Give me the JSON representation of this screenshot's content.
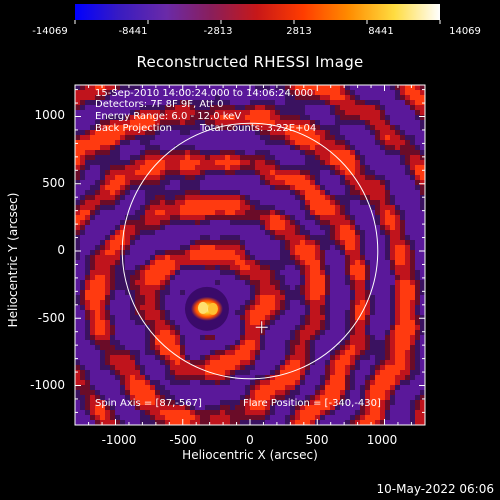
{
  "chart_data": {
    "type": "heatmap",
    "title": "Reconstructed RHESSI Image",
    "xlabel": "Heliocentric X (arcsec)",
    "ylabel": "Heliocentric Y (arcsec)",
    "xlim": [
      -1300,
      1300
    ],
    "ylim": [
      -1300,
      1300
    ],
    "xticks": [
      "-1000",
      "-500",
      "0",
      "500",
      "1000"
    ],
    "xtick_values": [
      -1000,
      -500,
      0,
      500,
      1000
    ],
    "yticks": [
      "1000",
      "500",
      "0",
      "-500",
      "-1000"
    ],
    "ytick_values": [
      1000,
      500,
      0,
      -500,
      -1000
    ],
    "colorbar": {
      "ticks": [
        "-14069",
        "-8441",
        "-2813",
        "2813",
        "8441",
        "14069"
      ],
      "tick_values": [
        -14069,
        -8441,
        -2813,
        2813,
        8441,
        14069
      ],
      "colors": [
        "#0000ff",
        "#3a1cc0",
        "#6a2aa8",
        "#8a1e5a",
        "#c81818",
        "#ff3c00",
        "#ff8c00",
        "#ffdc40",
        "#ffffff"
      ]
    },
    "annotations": {
      "time_range": "15-Sep-2010 14:00:24.000 to 14:06:24.000",
      "detectors": "Detectors: 7F 8F 9F, Att 0",
      "energy": "Energy Range: 6.0 - 12.0 keV",
      "method": "Back Projection",
      "counts": "Total counts: 3.22E+04",
      "spin_axis": "Spin Axis = [87,-567]",
      "flare_position": "Flare Position = [-340,-430]"
    },
    "limb_radius_arcsec": 950,
    "source_center": [
      -320,
      -430
    ],
    "spin_axis_xy": [
      87,
      -567
    ]
  },
  "footer": {
    "timestamp": "10-May-2022 06:06"
  }
}
